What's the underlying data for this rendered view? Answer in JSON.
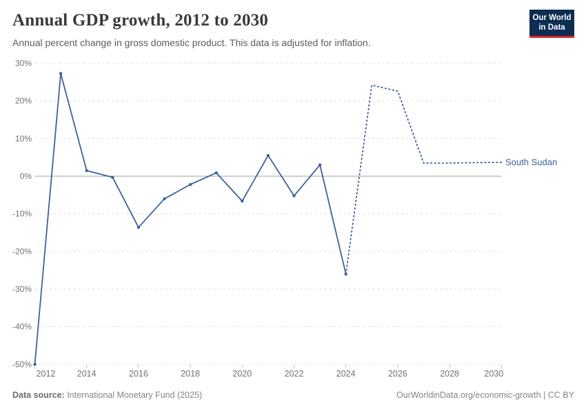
{
  "header": {
    "title": "Annual GDP growth, 2012 to 2030",
    "subtitle": "Annual percent change in gross domestic product. This data is adjusted for inflation.",
    "logo": {
      "line1": "Our World",
      "line2": "in Data"
    }
  },
  "footer": {
    "source_label": "Data source:",
    "source_text": " International Monetary Fund (2025)",
    "link_text": "OurWorldinData.org/economic-growth | CC BY"
  },
  "colors": {
    "line": "#3d619c",
    "grid": "#dcdcdc",
    "zero_line": "#a0a0a0",
    "tick": "#c8c8c8",
    "axis_text": "#717171",
    "logo_bg": "#0d2d52",
    "logo_red": "#d8232a"
  },
  "chart_data": {
    "type": "line",
    "title": "Annual GDP growth, 2012 to 2030",
    "subtitle": "Annual percent change in gross domestic product. This data is adjusted for inflation.",
    "unit": "%",
    "xlabel": "",
    "ylabel": "",
    "xlim": [
      2012,
      2030
    ],
    "ylim": [
      -50,
      30
    ],
    "grid": "horizontal-dashed",
    "legend_position": "line-end-label",
    "y_ticks": [
      {
        "value": 30,
        "label": "30%"
      },
      {
        "value": 20,
        "label": "20%"
      },
      {
        "value": 10,
        "label": "10%"
      },
      {
        "value": 0,
        "label": "0%"
      },
      {
        "value": -10,
        "label": "-10%"
      },
      {
        "value": -20,
        "label": "-20%"
      },
      {
        "value": -30,
        "label": "-30%"
      },
      {
        "value": -40,
        "label": "-40%"
      },
      {
        "value": -50,
        "label": "-50%"
      }
    ],
    "x_ticks": [
      {
        "year": 2012,
        "label": "2012"
      },
      {
        "year": 2014,
        "label": "2014"
      },
      {
        "year": 2016,
        "label": "2016"
      },
      {
        "year": 2018,
        "label": "2018"
      },
      {
        "year": 2020,
        "label": "2020"
      },
      {
        "year": 2022,
        "label": "2022"
      },
      {
        "year": 2024,
        "label": "2024"
      },
      {
        "year": 2026,
        "label": "2026"
      },
      {
        "year": 2028,
        "label": "2028"
      },
      {
        "year": 2030,
        "label": "2030"
      }
    ],
    "series": [
      {
        "name": "South Sudan",
        "color": "#3d619c",
        "solid": {
          "years": [
            2012,
            2013,
            2014,
            2015,
            2016,
            2017,
            2018,
            2019,
            2020,
            2021,
            2022,
            2023,
            2024
          ],
          "values": [
            -50,
            27.3,
            1.5,
            -0.3,
            -13.6,
            -6.0,
            -2.2,
            0.9,
            -6.6,
            5.5,
            -5.2,
            3.0,
            -26.0
          ]
        },
        "projection": {
          "years": [
            2024,
            2025,
            2026,
            2027,
            2028,
            2029,
            2030
          ],
          "values": [
            -26.0,
            24.2,
            22.6,
            3.5,
            3.5,
            3.6,
            3.7
          ]
        }
      }
    ]
  }
}
